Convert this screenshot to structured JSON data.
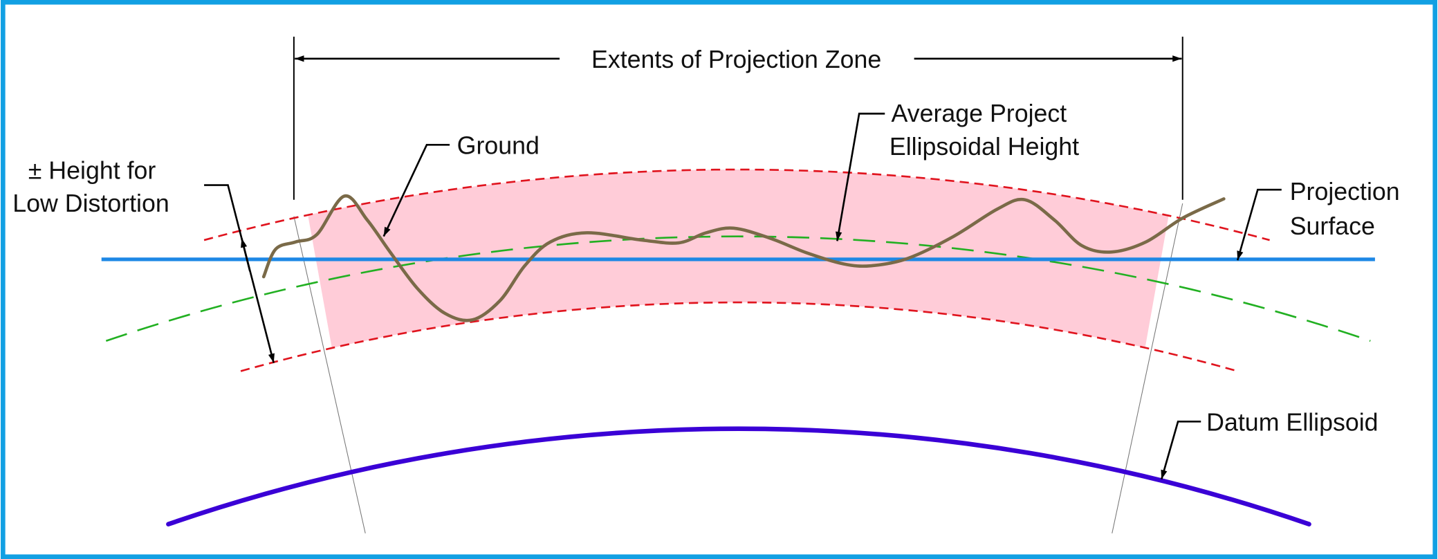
{
  "labels": {
    "extents": "Extents of Projection Zone",
    "ground": "Ground",
    "average_line1": "Average Project",
    "average_line2": "Ellipsoidal Height",
    "height_line1": "± Height for",
    "height_line2": "Low Distortion",
    "projection_line1": "Projection",
    "projection_line2": "Surface",
    "datum": "Datum Ellipsoid"
  },
  "colors": {
    "frame": "#12a0e3",
    "low_distortion_band": "#ffccd8",
    "low_distortion_limits": "#e0141e",
    "average_height": "#22b022",
    "projection_surface": "#1e88e5",
    "datum_ellipsoid": "#3a00d6",
    "ground": "#7a6a48"
  }
}
